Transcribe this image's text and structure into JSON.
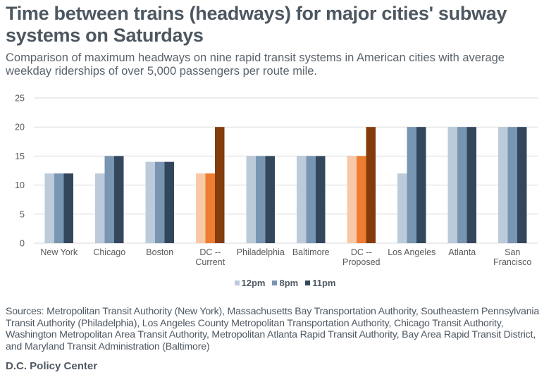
{
  "title": "Time between trains (headways) for major cities' subway systems on Saturdays",
  "subtitle": "Comparison of maximum headways on nine rapid transit systems in American cities with average weekday riderships of over 5,000 passengers per route mile.",
  "sources": "Sources: Metropolitan Transit Authority (New York), Massachusetts Bay Transportation Authority, Southeastern Pennsylvania Transit Authority (Philadelphia), Los Angeles County Metropolitan Transportation Authority, Chicago Transit Authority, Washington Metropolitan Area Transit Authority, Metropolitan Atlanta Rapid Transit Authority, Bay Area Rapid Transit District, and Maryland Transit Administration (Baltimore)",
  "credit": "D.C. Policy Center",
  "colors": {
    "default": [
      "#bccbd9",
      "#7895b2",
      "#33475c"
    ],
    "highlight": [
      "#f7c9a9",
      "#ed7d31",
      "#843c0c"
    ],
    "grid": "#d9d9d9",
    "tick_text": "#595959"
  },
  "chart_data": {
    "type": "bar",
    "title": "Time between trains (headways) for major cities' subway systems on Saturdays",
    "xlabel": "",
    "ylabel": "",
    "ylim": [
      0,
      25
    ],
    "yticks": [
      0,
      5,
      10,
      15,
      20,
      25
    ],
    "grid": true,
    "legend_position": "bottom",
    "categories": [
      [
        "New York"
      ],
      [
        "Chicago"
      ],
      [
        "Boston"
      ],
      [
        "DC --",
        "Current"
      ],
      [
        "Philadelphia"
      ],
      [
        "Baltimore"
      ],
      [
        "DC --",
        "Proposed"
      ],
      [
        "Los Angeles"
      ],
      [
        "Atlanta"
      ],
      [
        "San",
        "Francisco"
      ]
    ],
    "highlighted_categories": [
      3,
      6
    ],
    "series": [
      {
        "name": "12pm",
        "values": [
          12,
          12,
          14,
          12,
          15,
          15,
          15,
          12,
          20,
          20
        ]
      },
      {
        "name": "8pm",
        "values": [
          12,
          15,
          14,
          12,
          15,
          15,
          15,
          20,
          20,
          20
        ]
      },
      {
        "name": "11pm",
        "values": [
          12,
          15,
          14,
          20,
          15,
          15,
          20,
          20,
          20,
          20
        ]
      }
    ]
  }
}
